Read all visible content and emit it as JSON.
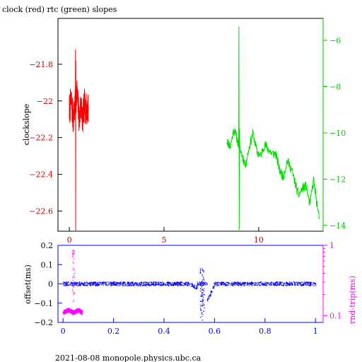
{
  "chart_data": [
    {
      "type": "line",
      "title": "clock (red) rtc (green) slopes",
      "ylabel": "clockslope",
      "xlim": [
        -0.6,
        13.4
      ],
      "ylim_left": [
        -22.71,
        -21.55
      ],
      "ylim_right": [
        -14.25,
        -5.05
      ],
      "x_ticks": [
        "0",
        "5",
        "10"
      ],
      "y_ticks_left": [
        "-21.8",
        "-22",
        "-22.2",
        "-22.4",
        "-22.6"
      ],
      "y_ticks_right": [
        "-6",
        "-8",
        "-10",
        "-12",
        "-14"
      ],
      "colors": {
        "clock": "#ff0000",
        "rtc": "#00e000",
        "frame": "#000000",
        "right_axis": "#00c000",
        "x_ticks": "#c00000"
      },
      "series": [
        {
          "color": "#ff0000",
          "axis": "left",
          "x": [
            0.0,
            0.1,
            0.2,
            0.3,
            0.4,
            0.5,
            0.55,
            0.6,
            0.7,
            0.8,
            0.9,
            1.0
          ],
          "y": [
            -22.05,
            -22.0,
            -22.1,
            -22.03,
            -21.95,
            -22.08,
            -22.1,
            -22.0,
            -22.1,
            -22.02,
            -22.05,
            -22.04
          ]
        },
        {
          "color": "#00e000",
          "axis": "right",
          "x": [
            8.3,
            8.5,
            8.7,
            8.9,
            9.1,
            9.3,
            9.5,
            9.7,
            9.9,
            10.1,
            10.3,
            10.5,
            10.7,
            10.9,
            11.1,
            11.3,
            11.5,
            11.7,
            11.9,
            12.1,
            12.3,
            12.5,
            12.7,
            12.9,
            13.1,
            13.2
          ],
          "y": [
            -10.3,
            -10.6,
            -9.8,
            -10.4,
            -10.9,
            -11.4,
            -10.6,
            -10.0,
            -10.8,
            -11.0,
            -10.5,
            -10.7,
            -10.9,
            -10.9,
            -11.6,
            -11.9,
            -11.2,
            -11.5,
            -12.1,
            -12.7,
            -12.4,
            -12.3,
            -13.1,
            -12.0,
            -13.3,
            -13.7
          ]
        }
      ]
    },
    {
      "type": "scatter",
      "ylabel_left": "offset(ms)",
      "ylabel_right": "rnd-trip(ms)",
      "xlim": [
        -0.02,
        1.03
      ],
      "ylim_left": [
        -0.2,
        0.2
      ],
      "ylim_right": [
        0.08,
        1.0
      ],
      "log_scale_right": true,
      "x_ticks": [
        "0",
        "0.2",
        "0.4",
        "0.6",
        "0.8",
        "1"
      ],
      "y_ticks_left": [
        "0.2",
        "0.1",
        "0",
        "-0.1",
        "-0.2"
      ],
      "y_ticks_right": [
        "1",
        "0.1"
      ],
      "colors": {
        "offset": "#0000ff",
        "round_trip": "#ff00ff",
        "frame": "#0000ff",
        "right_axis": "#ff00ff"
      },
      "series": [
        {
          "color": "#0000ff",
          "axis": "left",
          "x": [
            0.0,
            0.1,
            0.2,
            0.3,
            0.4,
            0.5,
            0.53,
            0.55,
            0.6,
            0.7,
            0.8,
            0.9,
            1.0
          ],
          "y": [
            0.0,
            0.0,
            0.0,
            0.0,
            0.0,
            0.0,
            -0.02,
            -0.15,
            0.0,
            0.0,
            0.0,
            0.0,
            0.0
          ]
        },
        {
          "color": "#ff00ff",
          "axis": "right",
          "x": [
            0.0,
            0.02,
            0.04,
            0.06,
            0.075
          ],
          "y": [
            0.11,
            0.12,
            0.11,
            0.12,
            0.11
          ]
        }
      ]
    }
  ],
  "footer": "2021-08-08  monopole.physics.ubc.ca"
}
